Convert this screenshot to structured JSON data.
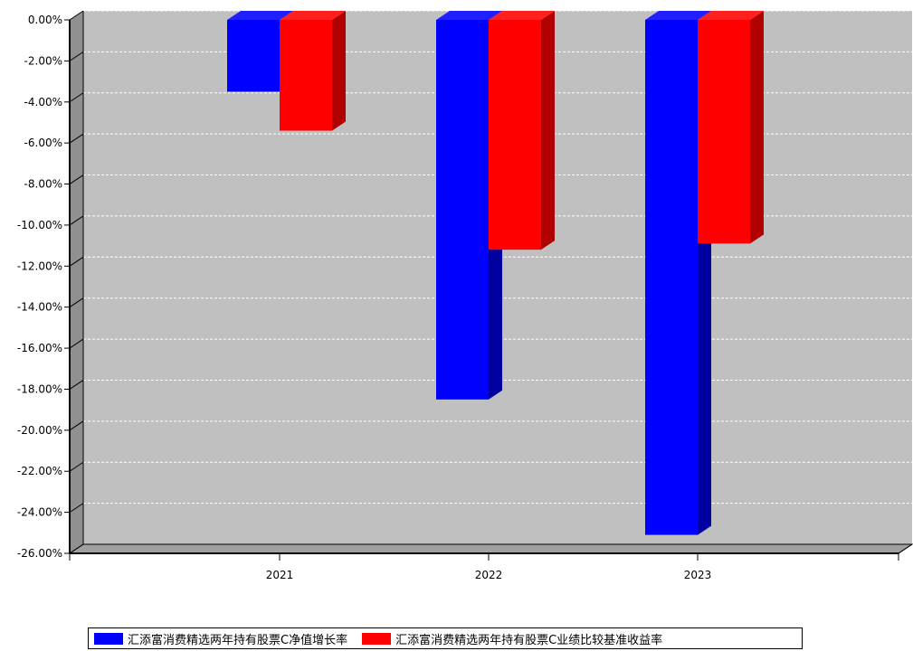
{
  "chart_data": {
    "type": "bar",
    "categories": [
      "2021",
      "2022",
      "2023"
    ],
    "series": [
      {
        "name": "汇添富消费精选两年持有股票C净值增长率",
        "color": "#0000ff",
        "values": [
          -3.5,
          -18.5,
          -25.1
        ]
      },
      {
        "name": "汇添富消费精选两年持有股票C业绩比较基准收益率",
        "color": "#ff0000",
        "values": [
          -5.4,
          -11.2,
          -10.9
        ]
      }
    ],
    "ylim": [
      -26,
      0
    ],
    "yticks": [
      0,
      -2,
      -4,
      -6,
      -8,
      -10,
      -12,
      -14,
      -16,
      -18,
      -20,
      -22,
      -24,
      -26
    ],
    "ytick_labels": [
      "0.00%",
      "-2.00%",
      "-4.00%",
      "-6.00%",
      "-8.00%",
      "-10.00%",
      "-12.00%",
      "-14.00%",
      "-16.00%",
      "-18.00%",
      "-20.00%",
      "-22.00%",
      "-24.00%",
      "-26.00%"
    ],
    "grid": true,
    "plot_background": "#c0c0c0",
    "legend_position": "bottom"
  }
}
